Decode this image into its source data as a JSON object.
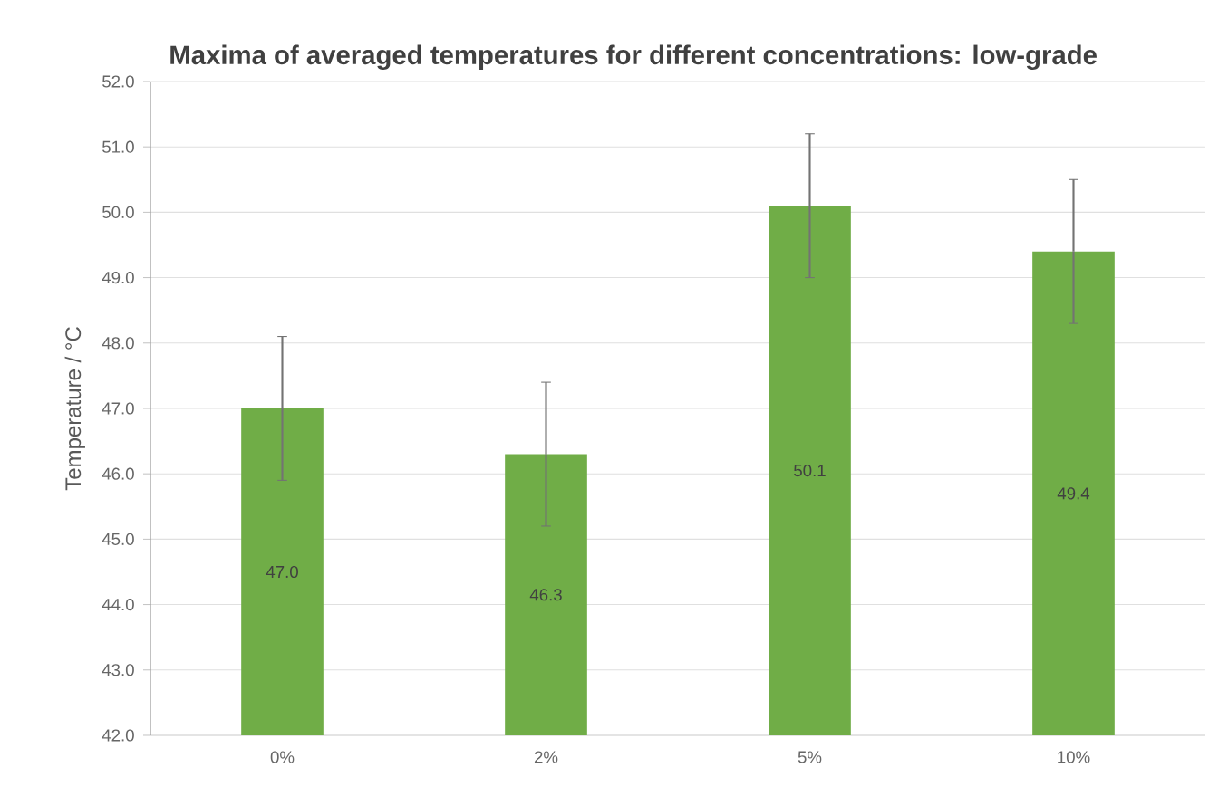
{
  "chart_data": {
    "type": "bar",
    "title": "Maxima of averaged temperatures for different concentrations: low-grade",
    "ylabel": "Temperature / °C",
    "categories": [
      "0%",
      "2%",
      "5%",
      "10%"
    ],
    "values": [
      47.0,
      46.3,
      50.1,
      49.4
    ],
    "value_labels": [
      "47.0",
      "46.3",
      "50.1",
      "49.4"
    ],
    "errors": [
      1.1,
      1.1,
      1.1,
      1.1
    ],
    "color": "#70ad47",
    "ylim": [
      42,
      52
    ],
    "yticks": [
      {
        "value": 42,
        "label": "42.0"
      },
      {
        "value": 43,
        "label": "43.0"
      },
      {
        "value": 44,
        "label": "44.0"
      },
      {
        "value": 45,
        "label": "45.0"
      },
      {
        "value": 46,
        "label": "46.0"
      },
      {
        "value": 47,
        "label": "47.0"
      },
      {
        "value": 48,
        "label": "48.0"
      },
      {
        "value": 49,
        "label": "49.0"
      },
      {
        "value": 50,
        "label": "50.0"
      },
      {
        "value": 51,
        "label": "51.0"
      },
      {
        "value": 52,
        "label": "52.0"
      }
    ],
    "grid": "y"
  }
}
